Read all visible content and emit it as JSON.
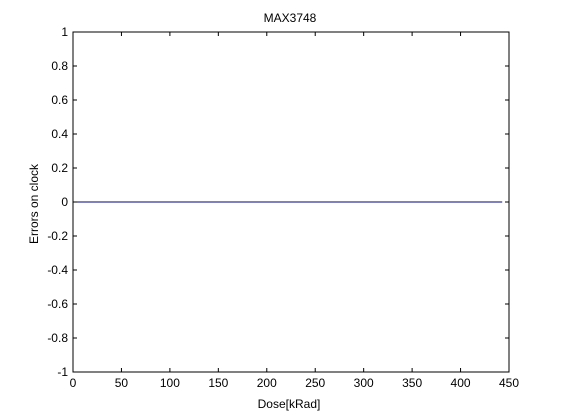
{
  "chart_data": {
    "type": "line",
    "title": "MAX3748",
    "xlabel": "Dose[kRad]",
    "ylabel": "Errors on clock",
    "xlim": [
      0,
      450
    ],
    "ylim": [
      -1,
      1
    ],
    "xticks": [
      0,
      50,
      100,
      150,
      200,
      250,
      300,
      350,
      400,
      450
    ],
    "yticks": [
      1,
      0.8,
      0.6,
      0.4,
      0.2,
      0,
      -0.2,
      -0.4,
      -0.6,
      -0.8,
      -1
    ],
    "xtick_labels": [
      "0",
      "50",
      "100",
      "150",
      "200",
      "250",
      "300",
      "350",
      "400",
      "450"
    ],
    "ytick_labels": [
      "1",
      "0.8",
      "0.6",
      "0.4",
      "0.2",
      "0",
      "-0.2",
      "-0.4",
      "-0.6",
      "-0.8",
      "-1"
    ],
    "grid": false,
    "series": [
      {
        "x": [
          0,
          443
        ],
        "y": [
          0,
          0
        ],
        "color": "#00007f"
      }
    ]
  }
}
